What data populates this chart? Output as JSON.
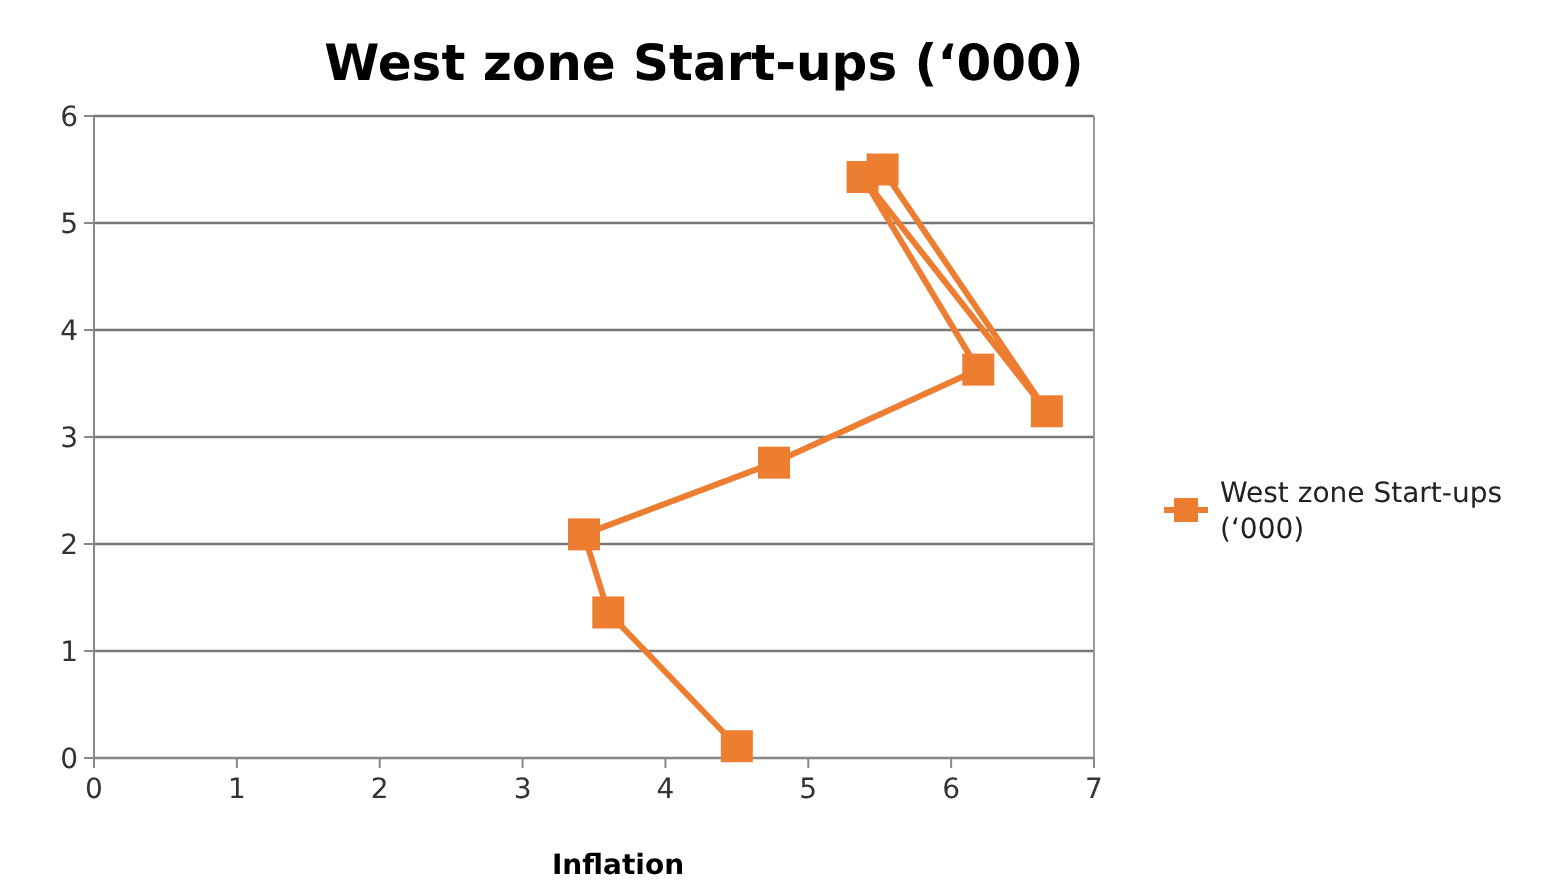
{
  "chart_data": {
    "type": "line",
    "title": "West zone Start-ups (‘000)",
    "xlabel": "Inflation",
    "xlim": [
      0,
      7
    ],
    "xticks": [
      0,
      1,
      2,
      3,
      4,
      5,
      6,
      7
    ],
    "ylim": [
      0,
      6
    ],
    "yticks": [
      0,
      1,
      2,
      3,
      4,
      5,
      6
    ],
    "grid": "y",
    "legend": "right",
    "marker": "square",
    "line_style": "solid",
    "series": [
      {
        "name": "West zone Start-ups (‘000)",
        "color": "#ed7d31",
        "x": [
          4.5,
          3.6,
          3.43,
          4.76,
          6.19,
          5.38,
          6.67,
          5.52
        ],
        "values": [
          0.11,
          1.36,
          2.09,
          2.76,
          3.63,
          5.43,
          3.24,
          5.5
        ]
      }
    ]
  }
}
